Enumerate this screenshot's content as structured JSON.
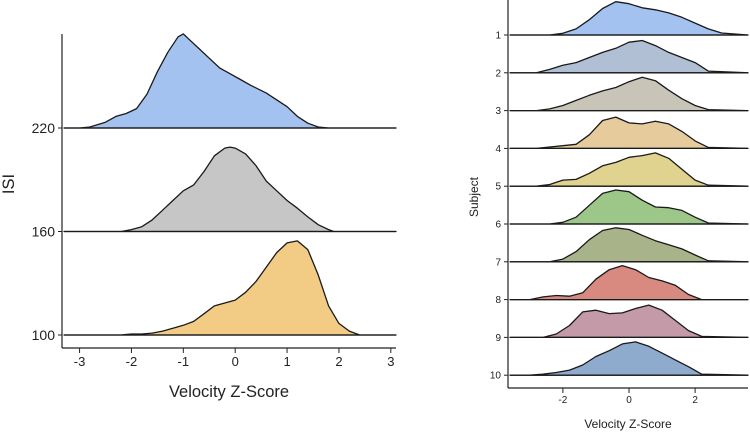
{
  "chart_data": [
    {
      "type": "area",
      "chart_kind": "ridgeline",
      "xlabel": "Velocity Z-Score",
      "ylabel": "ISI",
      "xlim": [
        -3.3,
        3.1
      ],
      "x_ticks": [
        -3,
        -2,
        -1,
        0,
        1,
        2,
        3
      ],
      "x_tick_labels": [
        "-3",
        "-2",
        "-1",
        "0",
        "1",
        "2",
        "3"
      ],
      "grid": false,
      "legend": "none",
      "series": [
        {
          "label": "220",
          "color": "#a4c2f0",
          "x": [
            -3.3,
            -3.0,
            -2.8,
            -2.5,
            -2.3,
            -2.1,
            -1.9,
            -1.7,
            -1.5,
            -1.3,
            -1.1,
            -1.0,
            -0.9,
            -0.7,
            -0.5,
            -0.3,
            -0.1,
            0.1,
            0.3,
            0.6,
            1.0,
            1.2,
            1.4,
            1.6,
            1.8,
            2.2,
            3.1
          ],
          "density": [
            0,
            0,
            0.01,
            0.06,
            0.12,
            0.15,
            0.2,
            0.35,
            0.58,
            0.78,
            0.94,
            0.97,
            0.92,
            0.82,
            0.72,
            0.62,
            0.56,
            0.5,
            0.44,
            0.36,
            0.22,
            0.12,
            0.05,
            0.01,
            0,
            0,
            0
          ]
        },
        {
          "label": "160",
          "color": "#c6c6c6",
          "x": [
            -3.3,
            -2.2,
            -2.0,
            -1.8,
            -1.6,
            -1.4,
            -1.2,
            -1.0,
            -0.8,
            -0.6,
            -0.4,
            -0.2,
            -0.1,
            0.0,
            0.2,
            0.4,
            0.6,
            0.8,
            1.0,
            1.2,
            1.4,
            1.6,
            1.8,
            1.9,
            3.1
          ],
          "density": [
            0,
            0,
            0.02,
            0.05,
            0.12,
            0.22,
            0.32,
            0.42,
            0.48,
            0.62,
            0.78,
            0.86,
            0.87,
            0.86,
            0.8,
            0.68,
            0.52,
            0.42,
            0.32,
            0.24,
            0.15,
            0.07,
            0.02,
            0,
            0
          ]
        },
        {
          "label": "100",
          "color": "#f2cc85",
          "x": [
            -3.3,
            -2.2,
            -2.0,
            -1.8,
            -1.6,
            -1.4,
            -1.2,
            -1.0,
            -0.8,
            -0.6,
            -0.4,
            -0.2,
            0.0,
            0.2,
            0.4,
            0.6,
            0.8,
            1.0,
            1.2,
            1.4,
            1.6,
            1.8,
            2.0,
            2.2,
            2.4,
            3.1
          ],
          "density": [
            0,
            0.0,
            0.01,
            0.01,
            0.02,
            0.04,
            0.07,
            0.1,
            0.14,
            0.22,
            0.3,
            0.33,
            0.36,
            0.44,
            0.55,
            0.7,
            0.85,
            0.95,
            0.97,
            0.88,
            0.62,
            0.3,
            0.12,
            0.04,
            0,
            0
          ]
        }
      ],
      "y_tick_labels": [
        "220",
        "160",
        "100"
      ]
    },
    {
      "type": "area",
      "chart_kind": "ridgeline",
      "xlabel": "Velocity Z-Score",
      "ylabel": "Subject",
      "xlim": [
        -3.6,
        3.6
      ],
      "x_ticks": [
        -2,
        0,
        2
      ],
      "x_tick_labels": [
        "-2",
        "0",
        "2"
      ],
      "grid": false,
      "legend": "none",
      "series": [
        {
          "label": "1",
          "color": "#a4c2f0",
          "x": [
            -3.6,
            -2.4,
            -2.0,
            -1.6,
            -1.2,
            -0.8,
            -0.4,
            0.0,
            0.4,
            0.8,
            1.2,
            1.6,
            2.0,
            2.4,
            2.8,
            3.6
          ],
          "density": [
            0,
            0,
            0.05,
            0.18,
            0.45,
            0.78,
            0.98,
            0.92,
            0.8,
            0.74,
            0.65,
            0.52,
            0.35,
            0.18,
            0.06,
            0
          ]
        },
        {
          "label": "2",
          "color": "#b0bfd4",
          "x": [
            -3.6,
            -2.8,
            -2.4,
            -2.0,
            -1.6,
            -1.2,
            -0.8,
            -0.4,
            0.0,
            0.4,
            0.8,
            1.2,
            1.6,
            2.0,
            2.4,
            3.6
          ],
          "density": [
            0,
            0,
            0.1,
            0.22,
            0.3,
            0.45,
            0.6,
            0.72,
            0.9,
            0.95,
            0.8,
            0.6,
            0.45,
            0.3,
            0.05,
            0
          ]
        },
        {
          "label": "3",
          "color": "#c9c4b8",
          "x": [
            -3.6,
            -2.8,
            -2.4,
            -2.0,
            -1.6,
            -1.2,
            -0.8,
            -0.4,
            0.0,
            0.4,
            0.8,
            1.2,
            1.6,
            2.0,
            2.4,
            3.6
          ],
          "density": [
            0,
            0,
            0.05,
            0.15,
            0.3,
            0.45,
            0.58,
            0.68,
            0.85,
            0.98,
            0.88,
            0.6,
            0.35,
            0.15,
            0.03,
            0
          ]
        },
        {
          "label": "4",
          "color": "#e6cc9c",
          "x": [
            -3.6,
            -2.8,
            -2.4,
            -2.0,
            -1.6,
            -1.2,
            -0.8,
            -0.4,
            0.0,
            0.4,
            0.8,
            1.2,
            1.6,
            2.0,
            2.4,
            3.6
          ],
          "density": [
            0,
            0,
            0.04,
            0.08,
            0.12,
            0.4,
            0.82,
            0.92,
            0.75,
            0.72,
            0.8,
            0.72,
            0.5,
            0.22,
            0.03,
            0
          ]
        },
        {
          "label": "5",
          "color": "#e0d28f",
          "x": [
            -3.6,
            -2.8,
            -2.4,
            -2.0,
            -1.6,
            -1.2,
            -0.8,
            -0.4,
            0.0,
            0.4,
            0.8,
            1.2,
            1.6,
            2.0,
            2.4,
            3.6
          ],
          "density": [
            0,
            0,
            0.05,
            0.18,
            0.2,
            0.38,
            0.6,
            0.7,
            0.85,
            0.9,
            0.98,
            0.82,
            0.5,
            0.18,
            0.03,
            0
          ]
        },
        {
          "label": "6",
          "color": "#9dc789",
          "x": [
            -3.6,
            -2.4,
            -2.0,
            -1.6,
            -1.2,
            -0.8,
            -0.4,
            0.0,
            0.4,
            0.8,
            1.2,
            1.6,
            2.0,
            2.4,
            3.6
          ],
          "density": [
            0,
            0,
            0.05,
            0.2,
            0.55,
            0.9,
            1.0,
            0.95,
            0.7,
            0.5,
            0.48,
            0.4,
            0.2,
            0.03,
            0
          ]
        },
        {
          "label": "7",
          "color": "#a8b389",
          "x": [
            -3.6,
            -2.4,
            -2.0,
            -1.6,
            -1.2,
            -0.8,
            -0.4,
            0.0,
            0.4,
            0.8,
            1.2,
            1.6,
            2.0,
            2.4,
            3.6
          ],
          "density": [
            0,
            0,
            0.08,
            0.3,
            0.65,
            0.92,
            1.0,
            0.95,
            0.78,
            0.62,
            0.5,
            0.38,
            0.2,
            0.03,
            0
          ]
        },
        {
          "label": "8",
          "color": "#d98a80",
          "x": [
            -3.6,
            -3.0,
            -2.6,
            -2.2,
            -1.8,
            -1.4,
            -1.0,
            -0.6,
            -0.2,
            0.2,
            0.6,
            1.0,
            1.4,
            1.8,
            2.2,
            3.6
          ],
          "density": [
            0,
            0,
            0.08,
            0.12,
            0.1,
            0.2,
            0.6,
            0.88,
            1.0,
            0.88,
            0.65,
            0.55,
            0.42,
            0.15,
            0,
            0
          ]
        },
        {
          "label": "9",
          "color": "#c49aa8",
          "x": [
            -3.6,
            -2.6,
            -2.2,
            -1.8,
            -1.4,
            -1.0,
            -0.6,
            -0.2,
            0.2,
            0.6,
            1.0,
            1.4,
            1.8,
            2.2,
            3.6
          ],
          "density": [
            0,
            0,
            0.1,
            0.35,
            0.75,
            0.8,
            0.7,
            0.72,
            0.85,
            0.95,
            0.8,
            0.5,
            0.2,
            0.03,
            0
          ]
        },
        {
          "label": "10",
          "color": "#8eaacc",
          "x": [
            -3.6,
            -3.0,
            -2.6,
            -2.2,
            -1.8,
            -1.4,
            -1.0,
            -0.6,
            -0.2,
            0.2,
            0.6,
            1.0,
            1.4,
            1.8,
            2.2,
            3.6
          ],
          "density": [
            0,
            0,
            0.03,
            0.08,
            0.15,
            0.3,
            0.55,
            0.72,
            0.92,
            0.98,
            0.85,
            0.65,
            0.45,
            0.25,
            0.03,
            0
          ]
        }
      ],
      "y_tick_labels": [
        "1",
        "2",
        "3",
        "4",
        "5",
        "6",
        "7",
        "8",
        "9",
        "10"
      ]
    }
  ]
}
